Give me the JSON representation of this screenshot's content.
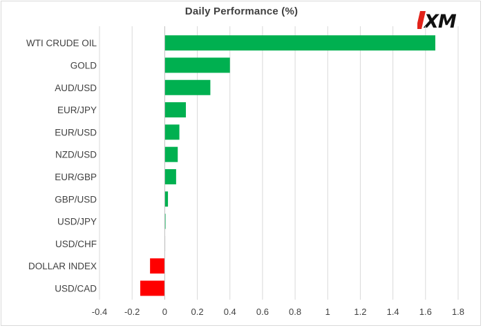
{
  "title": "Daily Performance (%)",
  "logo_text": "XM",
  "colors": {
    "positive": "#00b050",
    "negative": "#ff0000",
    "grid": "#d9d9d9",
    "axis": "#bfbfbf",
    "text": "#404040"
  },
  "chart_data": {
    "type": "bar",
    "orientation": "horizontal",
    "title": "Daily Performance (%)",
    "categories": [
      "WTI CRUDE OIL",
      "GOLD",
      "AUD/USD",
      "EUR/JPY",
      "EUR/USD",
      "NZD/USD",
      "EUR/GBP",
      "GBP/USD",
      "USD/JPY",
      "USD/CHF",
      "DOLLAR INDEX",
      "USD/CAD"
    ],
    "values": [
      1.66,
      0.4,
      0.28,
      0.13,
      0.09,
      0.08,
      0.07,
      0.02,
      0.005,
      0.002,
      -0.09,
      -0.15
    ],
    "xlim": [
      -0.4,
      1.8
    ],
    "xticks": [
      -0.4,
      -0.2,
      0,
      0.2,
      0.4,
      0.6,
      0.8,
      1,
      1.2,
      1.4,
      1.6,
      1.8
    ],
    "xtick_labels": [
      "-0.4",
      "-0.2",
      "0",
      "0.2",
      "0.4",
      "0.6",
      "0.8",
      "1",
      "1.2",
      "1.4",
      "1.6",
      "1.8"
    ],
    "grid": "vertical",
    "legend": "none",
    "xlabel": "",
    "ylabel": ""
  }
}
